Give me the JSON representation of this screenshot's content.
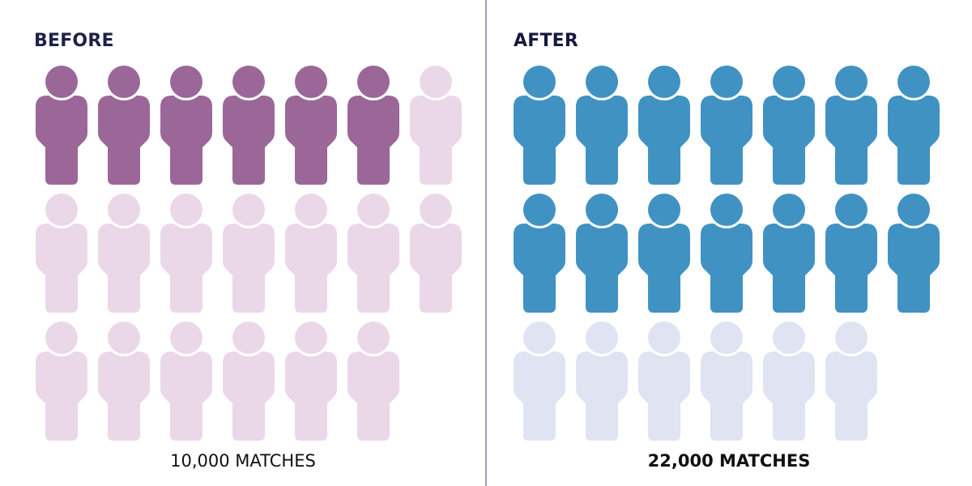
{
  "left_panel": {
    "label": "BEFORE",
    "caption": "10,000 MATCHES"
  },
  "right_panel": {
    "label": "AFTER",
    "caption": "22,000 MATCHES"
  },
  "chart_data": [
    {
      "type": "pictograph",
      "label": "BEFORE",
      "caption": "10,000 MATCHES",
      "icons_total": 20,
      "icons_filled": 6.5,
      "colors": {
        "filled": "#9b6799",
        "empty": "#ead8e9"
      }
    },
    {
      "type": "pictograph",
      "label": "AFTER",
      "caption": "22,000 MATCHES",
      "icons_total": 20,
      "icons_filled": 14.7,
      "colors": {
        "filled": "#4092c3",
        "empty": "#dfe3f2"
      }
    }
  ]
}
